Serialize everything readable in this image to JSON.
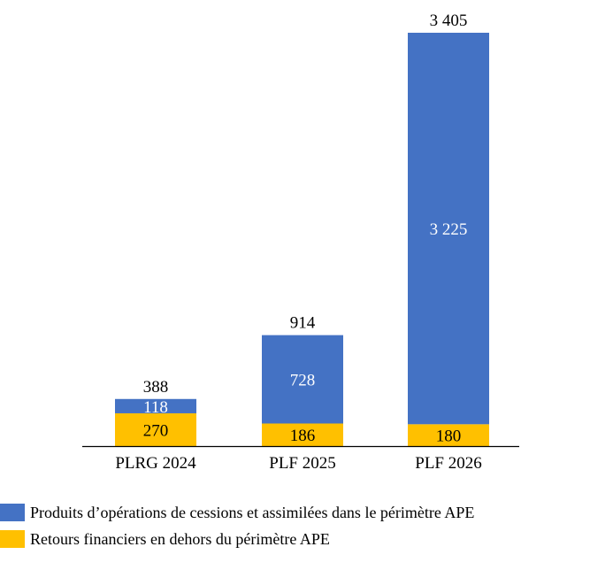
{
  "chart_data": {
    "type": "bar",
    "stacked": true,
    "categories": [
      "PLRG 2024",
      "PLF 2025",
      "PLF 2026"
    ],
    "series": [
      {
        "name": "Retours financiers en dehors du périmètre APE",
        "values": [
          270,
          186,
          180
        ],
        "color": "#FFC000",
        "labels": [
          "270",
          "186",
          "180"
        ]
      },
      {
        "name": "Produits d’opérations de cessions et assimilées dans le périmètre APE",
        "values": [
          118,
          728,
          3225
        ],
        "color": "#4472C4",
        "labels": [
          "118",
          "728",
          "3 225"
        ]
      }
    ],
    "totals": [
      388,
      914,
      3405
    ],
    "total_labels": [
      "388",
      "914",
      "3 405"
    ],
    "ylim": [
      0,
      3450
    ],
    "grid": false,
    "legend_position": "bottom"
  },
  "legend": {
    "items": [
      {
        "label": "Produits d’opérations de cessions et assimilées dans le périmètre APE",
        "color": "#4472C4"
      },
      {
        "label": "Retours financiers en dehors du périmètre APE",
        "color": "#FFC000"
      }
    ]
  }
}
